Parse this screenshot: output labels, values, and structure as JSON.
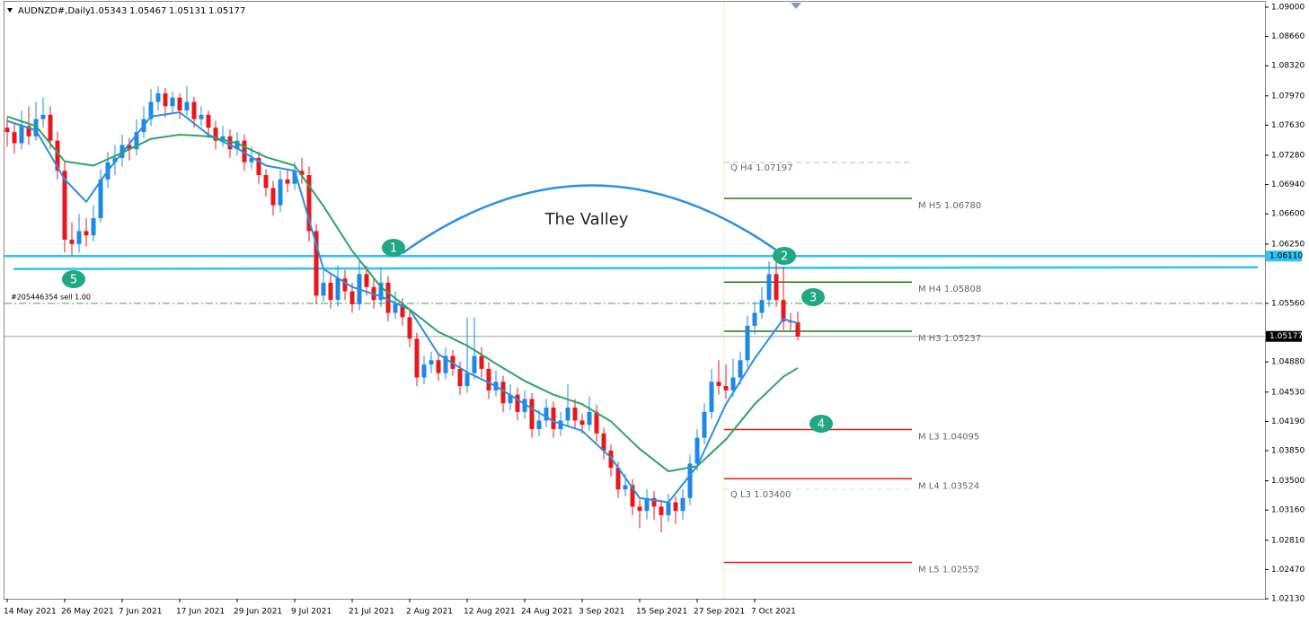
{
  "chart_data": {
    "type": "candlestick",
    "title": "AUDNZD#,Daily",
    "header_values": [
      1.05343,
      1.05467,
      1.05131,
      1.05177
    ],
    "bull_color": "#1e88e5",
    "bear_color": "#e8171d",
    "ylim": [
      1.0213,
      1.09
    ],
    "yticks": [
      {
        "value": 1.09,
        "label": "1.09000"
      },
      {
        "value": 1.0866,
        "label": "1.08660"
      },
      {
        "value": 1.0832,
        "label": "1.08320"
      },
      {
        "value": 1.0797,
        "label": "1.07970"
      },
      {
        "value": 1.0763,
        "label": "1.07630"
      },
      {
        "value": 1.0728,
        "label": "1.07280"
      },
      {
        "value": 1.0694,
        "label": "1.06940"
      },
      {
        "value": 1.066,
        "label": "1.06600"
      },
      {
        "value": 1.0625,
        "label": "1.06250"
      },
      {
        "value": 1.0556,
        "label": "1.05560"
      },
      {
        "value": 1.0488,
        "label": "1.04880"
      },
      {
        "value": 1.0453,
        "label": "1.04530"
      },
      {
        "value": 1.0419,
        "label": "1.04190"
      },
      {
        "value": 1.0385,
        "label": "1.03850"
      },
      {
        "value": 1.035,
        "label": "1.03500"
      },
      {
        "value": 1.0316,
        "label": "1.03160"
      },
      {
        "value": 1.0281,
        "label": "1.02810"
      },
      {
        "value": 1.0247,
        "label": "1.02470"
      },
      {
        "value": 1.0213,
        "label": "1.02130"
      }
    ],
    "categories": [
      "14 May 2021",
      null,
      null,
      null,
      null,
      null,
      null,
      null,
      "26 May 2021",
      null,
      null,
      null,
      null,
      null,
      null,
      null,
      "7 Jun 2021",
      null,
      null,
      null,
      null,
      null,
      null,
      null,
      "17 Jun 2021",
      null,
      null,
      null,
      null,
      null,
      null,
      null,
      "29 Jun 2021",
      null,
      null,
      null,
      null,
      null,
      null,
      null,
      "9 Jul 2021",
      null,
      null,
      null,
      null,
      null,
      null,
      null,
      "21 Jul 2021",
      null,
      null,
      null,
      null,
      null,
      null,
      null,
      "2 Aug 2021",
      null,
      null,
      null,
      null,
      null,
      null,
      null,
      "12 Aug 2021",
      null,
      null,
      null,
      null,
      null,
      null,
      null,
      "24 Aug 2021",
      null,
      null,
      null,
      null,
      null,
      null,
      null,
      "3 Sep 2021",
      null,
      null,
      null,
      null,
      null,
      null,
      null,
      "15 Sep 2021",
      null,
      null,
      null,
      null,
      null,
      null,
      null,
      "27 Sep 2021",
      null,
      null,
      null,
      null,
      null,
      null,
      null,
      "7 Oct 2021",
      null,
      null,
      null,
      null,
      null,
      null
    ],
    "candles": [
      [
        1.076,
        1.0772,
        1.0738,
        1.0755
      ],
      [
        1.0755,
        1.0765,
        1.073,
        1.0742
      ],
      [
        1.0742,
        1.078,
        1.0735,
        1.0762
      ],
      [
        1.0762,
        1.0785,
        1.074,
        1.075
      ],
      [
        1.075,
        1.079,
        1.0745,
        1.077
      ],
      [
        1.077,
        1.0795,
        1.076,
        1.0775
      ],
      [
        1.0775,
        1.0785,
        1.0735,
        1.0745
      ],
      [
        1.0745,
        1.0755,
        1.07,
        1.071
      ],
      [
        1.071,
        1.072,
        1.0615,
        1.063
      ],
      [
        1.063,
        1.065,
        1.0612,
        1.0625
      ],
      [
        1.0625,
        1.066,
        1.0615,
        1.064
      ],
      [
        1.064,
        1.0655,
        1.0622,
        1.0635
      ],
      [
        1.0635,
        1.067,
        1.0628,
        1.0655
      ],
      [
        1.0655,
        1.0712,
        1.065,
        1.07
      ],
      [
        1.07,
        1.0732,
        1.069,
        1.072
      ],
      [
        1.072,
        1.074,
        1.0705,
        1.0725
      ],
      [
        1.0725,
        1.0752,
        1.0715,
        1.074
      ],
      [
        1.074,
        1.0748,
        1.0722,
        1.0735
      ],
      [
        1.0735,
        1.077,
        1.0728,
        1.0755
      ],
      [
        1.0755,
        1.0785,
        1.0748,
        1.077
      ],
      [
        1.077,
        1.0805,
        1.0762,
        1.079
      ],
      [
        1.079,
        1.0808,
        1.078,
        1.08
      ],
      [
        1.08,
        1.0806,
        1.0772,
        1.0785
      ],
      [
        1.0785,
        1.0802,
        1.0776,
        1.0795
      ],
      [
        1.0795,
        1.08,
        1.077,
        1.078
      ],
      [
        1.078,
        1.0808,
        1.0774,
        1.079
      ],
      [
        1.079,
        1.0796,
        1.076,
        1.077
      ],
      [
        1.077,
        1.0785,
        1.0762,
        1.0775
      ],
      [
        1.0775,
        1.078,
        1.0748,
        1.076
      ],
      [
        1.076,
        1.0768,
        1.0735,
        1.0745
      ],
      [
        1.0745,
        1.0762,
        1.0738,
        1.075
      ],
      [
        1.075,
        1.0758,
        1.0725,
        1.0735
      ],
      [
        1.0735,
        1.0755,
        1.0728,
        1.0745
      ],
      [
        1.0745,
        1.0752,
        1.071,
        1.072
      ],
      [
        1.072,
        1.0738,
        1.0712,
        1.0725
      ],
      [
        1.0725,
        1.0732,
        1.0695,
        1.0705
      ],
      [
        1.0705,
        1.0712,
        1.068,
        1.069
      ],
      [
        1.069,
        1.0698,
        1.0658,
        1.067
      ],
      [
        1.067,
        1.071,
        1.0662,
        1.07
      ],
      [
        1.07,
        1.0712,
        1.0685,
        1.0695
      ],
      [
        1.0695,
        1.072,
        1.0688,
        1.071
      ],
      [
        1.071,
        1.0725,
        1.0695,
        1.0705
      ],
      [
        1.0705,
        1.0715,
        1.0628,
        1.064
      ],
      [
        1.064,
        1.0648,
        1.0555,
        1.0565
      ],
      [
        1.0565,
        1.0595,
        1.0558,
        1.058
      ],
      [
        1.058,
        1.059,
        1.055,
        1.056
      ],
      [
        1.056,
        1.06,
        1.0552,
        1.0585
      ],
      [
        1.0585,
        1.0595,
        1.056,
        1.057
      ],
      [
        1.057,
        1.058,
        1.0545,
        1.0555
      ],
      [
        1.0555,
        1.0605,
        1.0548,
        1.059
      ],
      [
        1.059,
        1.06,
        1.0565,
        1.0575
      ],
      [
        1.0575,
        1.0585,
        1.055,
        1.056
      ],
      [
        1.056,
        1.0598,
        1.0552,
        1.058
      ],
      [
        1.058,
        1.0588,
        1.0535,
        1.0545
      ],
      [
        1.0545,
        1.057,
        1.0538,
        1.0555
      ],
      [
        1.0555,
        1.0562,
        1.053,
        1.054
      ],
      [
        1.054,
        1.0548,
        1.0505,
        1.0515
      ],
      [
        1.0515,
        1.0522,
        1.046,
        1.047
      ],
      [
        1.047,
        1.0495,
        1.0462,
        1.0485
      ],
      [
        1.0485,
        1.05,
        1.0475,
        1.049
      ],
      [
        1.049,
        1.0498,
        1.0466,
        1.0475
      ],
      [
        1.0475,
        1.0505,
        1.0468,
        1.0495
      ],
      [
        1.0495,
        1.0502,
        1.0472,
        1.048
      ],
      [
        1.048,
        1.0488,
        1.045,
        1.046
      ],
      [
        1.046,
        1.054,
        1.0452,
        1.0475
      ],
      [
        1.0475,
        1.054,
        1.0468,
        1.0495
      ],
      [
        1.0495,
        1.0505,
        1.047,
        1.048
      ],
      [
        1.048,
        1.0488,
        1.0445,
        1.0455
      ],
      [
        1.0455,
        1.0478,
        1.0448,
        1.0465
      ],
      [
        1.0465,
        1.0472,
        1.043,
        1.044
      ],
      [
        1.044,
        1.0462,
        1.0432,
        1.045
      ],
      [
        1.045,
        1.0458,
        1.042,
        1.043
      ],
      [
        1.043,
        1.0455,
        1.0422,
        1.0445
      ],
      [
        1.0445,
        1.0452,
        1.04,
        1.041
      ],
      [
        1.041,
        1.0432,
        1.0402,
        1.042
      ],
      [
        1.042,
        1.0445,
        1.0412,
        1.0435
      ],
      [
        1.0435,
        1.0442,
        1.04,
        1.041
      ],
      [
        1.041,
        1.043,
        1.0402,
        1.042
      ],
      [
        1.042,
        1.0462,
        1.0412,
        1.0435
      ],
      [
        1.0435,
        1.0445,
        1.041,
        1.042
      ],
      [
        1.042,
        1.0428,
        1.0405,
        1.0415
      ],
      [
        1.0415,
        1.0448,
        1.0408,
        1.043
      ],
      [
        1.043,
        1.0438,
        1.0395,
        1.0405
      ],
      [
        1.0405,
        1.0412,
        1.0375,
        1.0385
      ],
      [
        1.0385,
        1.0392,
        1.0355,
        1.0365
      ],
      [
        1.0365,
        1.0372,
        1.033,
        1.034
      ],
      [
        1.034,
        1.0358,
        1.0332,
        1.0345
      ],
      [
        1.0345,
        1.0352,
        1.031,
        1.032
      ],
      [
        1.032,
        1.0328,
        1.0295,
        1.0315
      ],
      [
        1.0315,
        1.034,
        1.0305,
        1.033
      ],
      [
        1.033,
        1.0338,
        1.0305,
        1.032
      ],
      [
        1.032,
        1.0328,
        1.029,
        1.031
      ],
      [
        1.031,
        1.0335,
        1.0302,
        1.0325
      ],
      [
        1.0325,
        1.0332,
        1.03,
        1.0315
      ],
      [
        1.0315,
        1.034,
        1.0305,
        1.033
      ],
      [
        1.033,
        1.038,
        1.0322,
        1.037
      ],
      [
        1.037,
        1.041,
        1.0362,
        1.04
      ],
      [
        1.04,
        1.044,
        1.0392,
        1.043
      ],
      [
        1.043,
        1.048,
        1.0422,
        1.0465
      ],
      [
        1.0465,
        1.049,
        1.045,
        1.046
      ],
      [
        1.046,
        1.0485,
        1.0445,
        1.0455
      ],
      [
        1.0455,
        1.0492,
        1.0448,
        1.047
      ],
      [
        1.047,
        1.05,
        1.0462,
        1.049
      ],
      [
        1.049,
        1.0542,
        1.0482,
        1.053
      ],
      [
        1.053,
        1.0558,
        1.052,
        1.0545
      ],
      [
        1.0545,
        1.0575,
        1.0538,
        1.056
      ],
      [
        1.056,
        1.0605,
        1.0552,
        1.059
      ],
      [
        1.059,
        1.0608,
        1.0552,
        1.056
      ],
      [
        1.056,
        1.0598,
        1.0525,
        1.0535
      ],
      [
        1.0535,
        1.0545,
        1.0525,
        1.05343
      ],
      [
        1.05343,
        1.05467,
        1.05131,
        1.05177
      ]
    ],
    "series": [
      {
        "color": "#2b8fe3",
        "x": [
          0,
          4,
          8,
          11,
          14,
          20,
          24,
          28,
          32,
          36,
          40,
          44,
          48,
          52,
          56,
          60,
          64,
          68,
          72,
          76,
          80,
          84,
          88,
          92,
          96,
          100,
          104,
          108,
          110
        ],
        "values": [
          1.0768,
          1.0757,
          1.07,
          1.0674,
          1.071,
          1.0773,
          1.0778,
          1.0752,
          1.0736,
          1.0716,
          1.071,
          1.0596,
          1.0575,
          1.0564,
          1.0549,
          1.0497,
          1.0476,
          1.046,
          1.0439,
          1.0419,
          1.0408,
          1.0377,
          1.033,
          1.0325,
          1.0367,
          1.0439,
          1.0492,
          1.0538,
          1.0533
        ]
      },
      {
        "color": "#2ea36a",
        "x": [
          0,
          4,
          8,
          12,
          16,
          20,
          24,
          28,
          32,
          36,
          40,
          44,
          48,
          52,
          56,
          60,
          64,
          68,
          72,
          76,
          80,
          84,
          88,
          92,
          96,
          100,
          104,
          108,
          110
        ],
        "values": [
          1.0773,
          1.0762,
          1.0721,
          1.0716,
          1.0731,
          1.0747,
          1.0752,
          1.075,
          1.0742,
          1.0726,
          1.0716,
          1.0669,
          1.0617,
          1.0575,
          1.0549,
          1.0523,
          1.0507,
          1.0486,
          1.0466,
          1.045,
          1.0439,
          1.0419,
          1.0387,
          1.0361,
          1.0367,
          1.0398,
          1.0439,
          1.0471,
          1.0481
        ]
      }
    ],
    "levels": [
      {
        "label": "Q  H4 1.07197",
        "value": 1.07197,
        "color": "#9fd49f",
        "style": "dash"
      },
      {
        "label": "M  H5 1.06780",
        "value": 1.0678,
        "color": "#1d7a1d",
        "style": "solid"
      },
      {
        "label": "M  H4 1.05808",
        "value": 1.05808,
        "color": "#1d7a1d",
        "style": "solid"
      },
      {
        "label": "M  H3 1.05237",
        "value": 1.05237,
        "color": "#1d7a1d",
        "style": "solid"
      },
      {
        "label": "M  L3 1.04095",
        "value": 1.04095,
        "color": "#e8171d",
        "style": "solid"
      },
      {
        "label": "M  L4 1.03524",
        "value": 1.03524,
        "color": "#e8171d",
        "style": "solid"
      },
      {
        "label": "Q  L3 1.03400",
        "value": 1.034,
        "color": "#dddddd",
        "style": "dash"
      },
      {
        "label": "M  L5 1.02552",
        "value": 1.02552,
        "color": "#e8171d",
        "style": "solid"
      }
    ],
    "hlines": [
      {
        "label": "1.06110",
        "value": 1.0611,
        "color": "#2ec3f0",
        "kind": "price"
      },
      {
        "label": "#205446354 sell 1.00",
        "value": 1.0556,
        "color": "#3aa83a",
        "kind": "order"
      },
      {
        "label": "1.05177",
        "value": 1.05177,
        "color": "#9aa3a3",
        "kind": "bid"
      }
    ],
    "trendline": [
      1.0596,
      1.0598
    ],
    "annotations": {
      "markers": [
        "1",
        "2",
        "3",
        "4",
        "5"
      ],
      "arc_label": "The Valley"
    }
  }
}
